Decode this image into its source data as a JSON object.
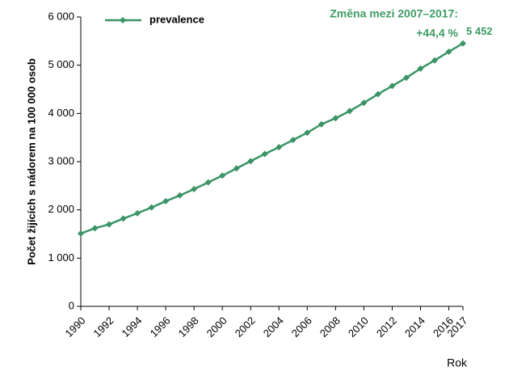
{
  "chart_data": {
    "type": "line",
    "y_label": "Počet žijících  s nádorem  na 100 000 osob",
    "x_label": "Rok",
    "annotation": [
      "Změna mezi 2007–2017:",
      "+44,4 %"
    ],
    "x": [
      1990,
      1991,
      1992,
      1993,
      1994,
      1995,
      1996,
      1997,
      1998,
      1999,
      2000,
      2001,
      2002,
      2003,
      2004,
      2005,
      2006,
      2007,
      2008,
      2009,
      2010,
      2011,
      2012,
      2013,
      2014,
      2015,
      2016,
      2017
    ],
    "series": [
      {
        "name": "prevalence",
        "color": "#3a9466",
        "values": [
          1510,
          1620,
          1700,
          1820,
          1930,
          2050,
          2180,
          2300,
          2430,
          2570,
          2710,
          2860,
          3010,
          3160,
          3300,
          3450,
          3600,
          3776,
          3900,
          4050,
          4220,
          4400,
          4570,
          4740,
          4930,
          5100,
          5280,
          5452
        ],
        "value_labels": [
          null,
          null,
          null,
          null,
          null,
          null,
          null,
          null,
          null,
          null,
          null,
          null,
          null,
          null,
          null,
          null,
          null,
          null,
          null,
          null,
          null,
          null,
          null,
          null,
          null,
          null,
          null,
          "5 452"
        ]
      }
    ],
    "xlim": [
      1990,
      2017
    ],
    "xticks": [
      1990,
      1992,
      1994,
      1996,
      1998,
      2000,
      2002,
      2004,
      2006,
      2008,
      2010,
      2012,
      2014,
      2016,
      2017
    ],
    "ylim": [
      0,
      6000
    ],
    "yticks": [
      0,
      {
        "value": 1000,
        "label": "1 000"
      },
      {
        "value": 2000,
        "label": "2 000"
      },
      {
        "value": 3000,
        "label": "3 000"
      },
      {
        "value": 4000,
        "label": "4 000"
      },
      {
        "value": 5000,
        "label": "5 000"
      },
      {
        "value": 6000,
        "label": "6 000"
      }
    ],
    "legend": "top-left"
  }
}
